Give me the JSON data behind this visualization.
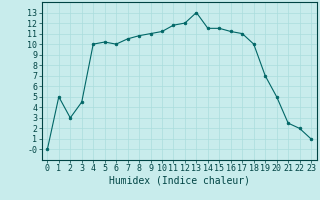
{
  "x": [
    0,
    1,
    2,
    3,
    4,
    5,
    6,
    7,
    8,
    9,
    10,
    11,
    12,
    13,
    14,
    15,
    16,
    17,
    18,
    19,
    20,
    21,
    22,
    23
  ],
  "y": [
    0,
    5,
    3,
    4.5,
    10,
    10.2,
    10,
    10.5,
    10.8,
    11,
    11.2,
    11.8,
    12,
    13,
    11.5,
    11.5,
    11.2,
    11,
    10,
    7,
    5,
    2.5,
    2,
    1
  ],
  "line_color": "#006666",
  "marker": "o",
  "marker_size": 2,
  "bg_color": "#c8ecec",
  "grid_color": "#aadddd",
  "xlabel": "Humidex (Indice chaleur)",
  "ylim": [
    -1,
    14
  ],
  "xlim": [
    -0.5,
    23.5
  ],
  "yticks": [
    0,
    1,
    2,
    3,
    4,
    5,
    6,
    7,
    8,
    9,
    10,
    11,
    12,
    13
  ],
  "xticks": [
    0,
    1,
    2,
    3,
    4,
    5,
    6,
    7,
    8,
    9,
    10,
    11,
    12,
    13,
    14,
    15,
    16,
    17,
    18,
    19,
    20,
    21,
    22,
    23
  ],
  "ytick_labels": [
    "-0",
    "1",
    "2",
    "3",
    "4",
    "5",
    "6",
    "7",
    "8",
    "9",
    "10",
    "11",
    "12",
    "13"
  ],
  "font_color": "#004444",
  "tick_font_size": 6,
  "label_font_size": 7
}
